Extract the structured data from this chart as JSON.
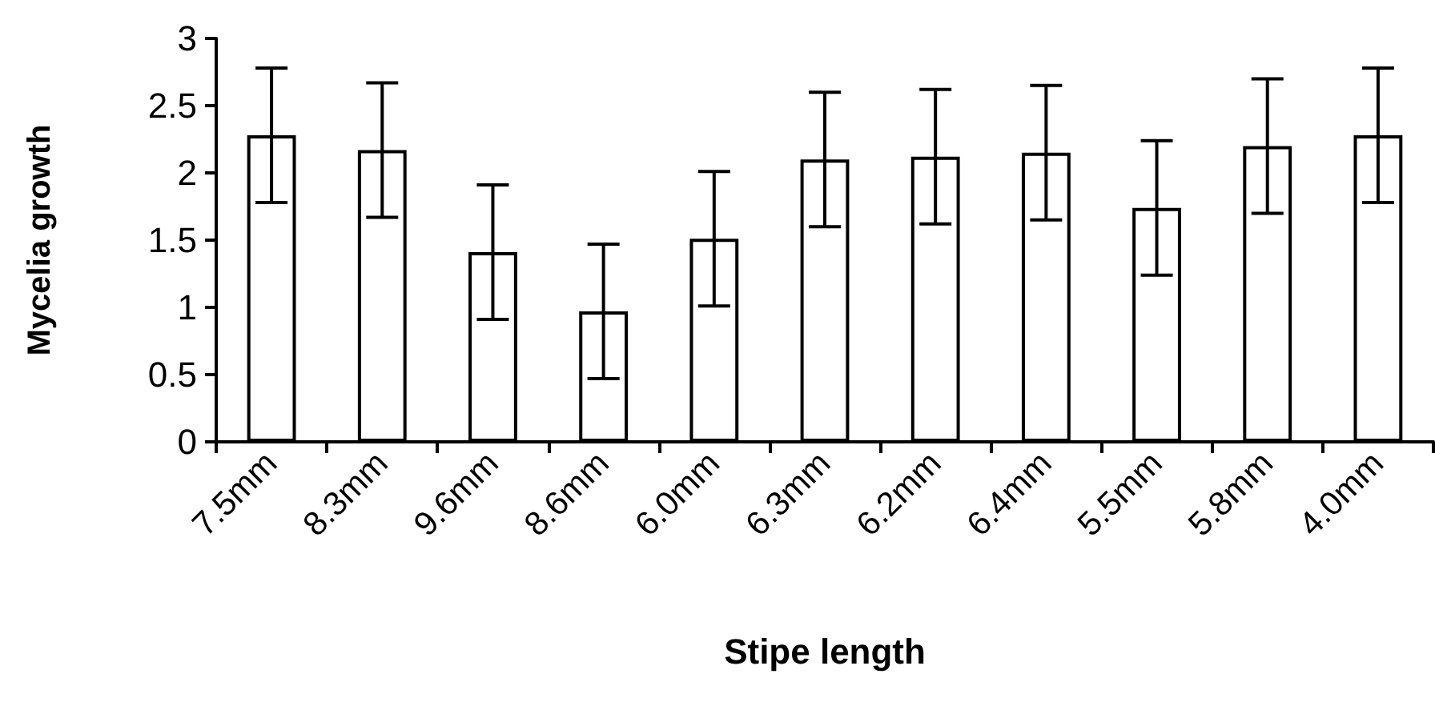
{
  "chart_data": {
    "type": "bar",
    "xlabel": "Stipe length",
    "ylabel": "Mycelia growth",
    "categories": [
      "7.5mm",
      "8.3mm",
      "9.6mm",
      "8.6mm",
      "6.0mm",
      "6.3mm",
      "6.2mm",
      "6.4mm",
      "5.5mm",
      "5.8mm",
      "4.0mm"
    ],
    "values": [
      2.28,
      2.17,
      1.41,
      0.97,
      1.51,
      2.1,
      2.12,
      2.15,
      1.74,
      2.2,
      2.28
    ],
    "errors": [
      0.5,
      0.5,
      0.5,
      0.5,
      0.5,
      0.5,
      0.5,
      0.5,
      0.5,
      0.5,
      0.5
    ],
    "color": "#ffffff",
    "ylim": [
      0,
      3
    ],
    "yticks": [
      0,
      0.5,
      1,
      1.5,
      2,
      2.5,
      3
    ]
  }
}
